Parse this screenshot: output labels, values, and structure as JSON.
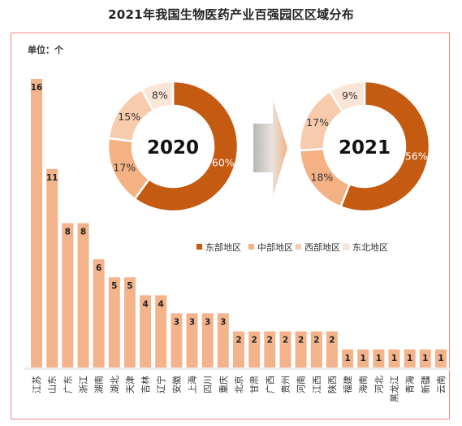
{
  "title": "2021年我国生物医药产业百强园区区域分布",
  "unit_label": "单位：个",
  "colors": {
    "bar": "#f3b48c",
    "east": "#c55a11",
    "central": "#f4b183",
    "west": "#f8cbad",
    "northeast": "#fbe5d6",
    "frame": "#f08a8a"
  },
  "chart_data": [
    {
      "type": "bar",
      "categories": [
        "江苏",
        "山东",
        "广东",
        "浙江",
        "湖南",
        "湖北",
        "天津",
        "吉林",
        "辽宁",
        "安徽",
        "上海",
        "四川",
        "重庆",
        "北京",
        "甘肃",
        "广西",
        "贵州",
        "河南",
        "江西",
        "陕西",
        "福建",
        "海南",
        "河北",
        "黑龙江",
        "青海",
        "新疆",
        "云南"
      ],
      "values": [
        16,
        11,
        8,
        8,
        6,
        5,
        5,
        4,
        4,
        3,
        3,
        3,
        3,
        2,
        2,
        2,
        2,
        2,
        2,
        2,
        1,
        1,
        1,
        1,
        1,
        1,
        1
      ],
      "ylabel": "单位：个",
      "ylim": [
        0,
        16
      ],
      "grid": false
    },
    {
      "type": "pie",
      "center_label": "2020",
      "labels": [
        "东部地区",
        "中部地区",
        "西部地区",
        "东北地区"
      ],
      "values": [
        60,
        17,
        15,
        8
      ],
      "value_suffix": "%"
    },
    {
      "type": "pie",
      "center_label": "2021",
      "labels": [
        "东部地区",
        "中部地区",
        "西部地区",
        "东北地区"
      ],
      "values": [
        56,
        18,
        17,
        9
      ],
      "value_suffix": "%"
    }
  ],
  "legend": {
    "placement": "center-right",
    "items": [
      {
        "label": "东部地区",
        "color": "#c55a11"
      },
      {
        "label": "中部地区",
        "color": "#f4b183"
      },
      {
        "label": "西部地区",
        "color": "#f8cbad"
      },
      {
        "label": "东北地区",
        "color": "#fbe5d6"
      }
    ]
  }
}
